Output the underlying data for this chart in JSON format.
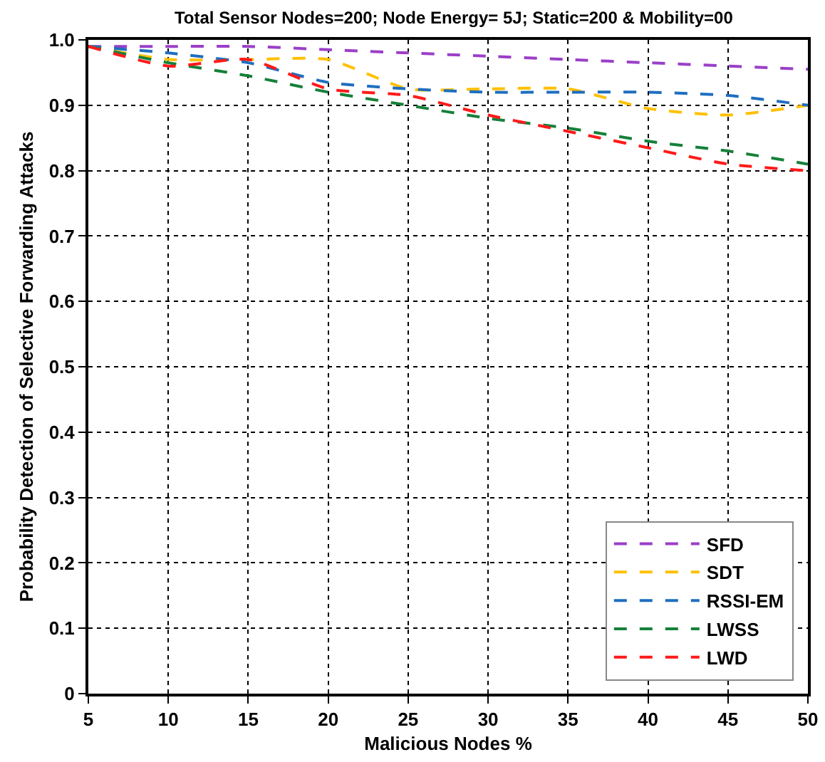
{
  "chart_data": {
    "type": "line",
    "title": "Total Sensor Nodes=200; Node Energy= 5J; Static=200 & Mobility=00",
    "xlabel": "Malicious Nodes %",
    "ylabel": "Probability Detection of Selective Forwarding Attacks",
    "x": [
      5,
      10,
      15,
      20,
      25,
      30,
      35,
      40,
      45,
      50
    ],
    "series": [
      {
        "name": "SFD",
        "color": "#9b3fc8",
        "values": [
          0.99,
          0.99,
          0.99,
          0.985,
          0.98,
          0.975,
          0.97,
          0.965,
          0.96,
          0.955
        ]
      },
      {
        "name": "SDT",
        "color": "#ffc000",
        "values": [
          0.99,
          0.97,
          0.97,
          0.97,
          0.925,
          0.925,
          0.925,
          0.895,
          0.885,
          0.9
        ]
      },
      {
        "name": "RSSI-EM",
        "color": "#1f6ebf",
        "values": [
          0.99,
          0.98,
          0.965,
          0.935,
          0.925,
          0.92,
          0.92,
          0.92,
          0.915,
          0.9
        ]
      },
      {
        "name": "LWSS",
        "color": "#16803a",
        "values": [
          0.99,
          0.965,
          0.945,
          0.92,
          0.9,
          0.88,
          0.865,
          0.845,
          0.83,
          0.81
        ]
      },
      {
        "name": "LWD",
        "color": "#ff1a1a",
        "values": [
          0.99,
          0.96,
          0.97,
          0.925,
          0.915,
          0.885,
          0.86,
          0.835,
          0.81,
          0.8
        ]
      }
    ],
    "xlim": [
      5,
      50
    ],
    "xticks": [
      5,
      10,
      15,
      20,
      25,
      30,
      35,
      40,
      45,
      50
    ],
    "ylim": [
      0,
      1
    ],
    "yticks": [
      {
        "value": 0,
        "label": "0"
      },
      {
        "value": 0.1,
        "label": "0.1"
      },
      {
        "value": 0.2,
        "label": "0.2"
      },
      {
        "value": 0.3,
        "label": "0.3"
      },
      {
        "value": 0.4,
        "label": "0.4"
      },
      {
        "value": 0.5,
        "label": "0.5"
      },
      {
        "value": 0.6,
        "label": "0.6"
      },
      {
        "value": 0.7,
        "label": "0.7"
      },
      {
        "value": 0.8,
        "label": "0.8"
      },
      {
        "value": 0.9,
        "label": "0.9"
      },
      {
        "value": 1,
        "label": "1.0"
      }
    ],
    "grid": true,
    "legend": "bottom right",
    "line_style": "dashed",
    "marker": "none"
  }
}
